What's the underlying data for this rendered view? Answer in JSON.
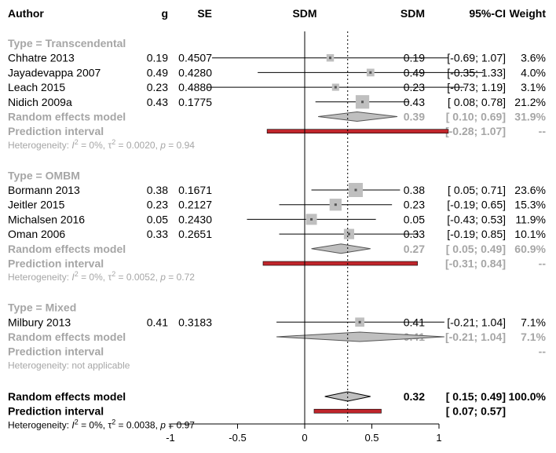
{
  "chart_data": {
    "type": "forest",
    "headers": {
      "author": "Author",
      "g": "g",
      "se": "SE",
      "sdm_plot": "SDM",
      "sdm": "SDM",
      "ci": "95%-CI",
      "weight": "Weight"
    },
    "xlim": [
      -1,
      1
    ],
    "ticks": [
      -1,
      -0.5,
      0,
      0.5,
      1
    ],
    "tick_labels": [
      "-1",
      "-0.5",
      "0",
      "0.5",
      "1"
    ],
    "reference_line": 0,
    "overall_line": 0.32,
    "groups": [
      {
        "title": "Type = Transcendental",
        "studies": [
          {
            "author": "Chhatre 2013",
            "g": "0.19",
            "se": "0.4507",
            "est": 0.19,
            "lo": -0.69,
            "hi": 1.07,
            "sdm": "0.19",
            "ci": "[-0.69; 1.07]",
            "weight": "3.6%",
            "w": 3.6
          },
          {
            "author": "Jayadevappa 2007",
            "g": "0.49",
            "se": "0.4280",
            "est": 0.49,
            "lo": -0.35,
            "hi": 1.33,
            "sdm": "0.49",
            "ci": "[-0.35; 1.33]",
            "weight": "4.0%",
            "w": 4.0
          },
          {
            "author": "Leach 2015",
            "g": "0.23",
            "se": "0.4880",
            "est": 0.23,
            "lo": -0.73,
            "hi": 1.19,
            "sdm": "0.23",
            "ci": "[-0.73; 1.19]",
            "weight": "3.1%",
            "w": 3.1
          },
          {
            "author": "Nidich 2009a",
            "g": "0.43",
            "se": "0.1775",
            "est": 0.43,
            "lo": 0.08,
            "hi": 0.78,
            "sdm": "0.43",
            "ci": "[ 0.08; 0.78]",
            "weight": "21.2%",
            "w": 21.2
          }
        ],
        "random": {
          "label": "Random effects model",
          "est": 0.39,
          "lo": 0.1,
          "hi": 0.69,
          "sdm": "0.39",
          "ci": "[ 0.10; 0.69]",
          "weight": "31.9%"
        },
        "prediction": {
          "label": "Prediction interval",
          "lo": -0.28,
          "hi": 1.07,
          "ci": "[-0.28; 1.07]",
          "weight": "--"
        },
        "heterogeneity": {
          "prefix": "Heterogeneity: ",
          "i2": "I",
          "i2_sup": "2",
          "i2_rest": " = 0%, ",
          "tau": "τ",
          "tau_sup": "2",
          "tau_rest": " = 0.0020, ",
          "p": "p",
          "p_rest": " = 0.94"
        }
      },
      {
        "title": "Type = OMBM",
        "studies": [
          {
            "author": "Bormann 2013",
            "g": "0.38",
            "se": "0.1671",
            "est": 0.38,
            "lo": 0.05,
            "hi": 0.71,
            "sdm": "0.38",
            "ci": "[ 0.05; 0.71]",
            "weight": "23.6%",
            "w": 23.6
          },
          {
            "author": "Jeitler 2015",
            "g": "0.23",
            "se": "0.2127",
            "est": 0.23,
            "lo": -0.19,
            "hi": 0.65,
            "sdm": "0.23",
            "ci": "[-0.19; 0.65]",
            "weight": "15.3%",
            "w": 15.3
          },
          {
            "author": "Michalsen 2016",
            "g": "0.05",
            "se": "0.2430",
            "est": 0.05,
            "lo": -0.43,
            "hi": 0.53,
            "sdm": "0.05",
            "ci": "[-0.43; 0.53]",
            "weight": "11.9%",
            "w": 11.9
          },
          {
            "author": "Oman 2006",
            "g": "0.33",
            "se": "0.2651",
            "est": 0.33,
            "lo": -0.19,
            "hi": 0.85,
            "sdm": "0.33",
            "ci": "[-0.19; 0.85]",
            "weight": "10.1%",
            "w": 10.1
          }
        ],
        "random": {
          "label": "Random effects model",
          "est": 0.27,
          "lo": 0.05,
          "hi": 0.49,
          "sdm": "0.27",
          "ci": "[ 0.05; 0.49]",
          "weight": "60.9%"
        },
        "prediction": {
          "label": "Prediction interval",
          "lo": -0.31,
          "hi": 0.84,
          "ci": "[-0.31; 0.84]",
          "weight": "--"
        },
        "heterogeneity": {
          "prefix": "Heterogeneity: ",
          "i2": "I",
          "i2_sup": "2",
          "i2_rest": " = 0%, ",
          "tau": "τ",
          "tau_sup": "2",
          "tau_rest": " = 0.0052, ",
          "p": "p",
          "p_rest": " = 0.72"
        }
      },
      {
        "title": "Type = Mixed",
        "studies": [
          {
            "author": "Milbury 2013",
            "g": "0.41",
            "se": "0.3183",
            "est": 0.41,
            "lo": -0.21,
            "hi": 1.04,
            "sdm": "0.41",
            "ci": "[-0.21; 1.04]",
            "weight": "7.1%",
            "w": 7.1
          }
        ],
        "random": {
          "label": "Random effects model",
          "est": 0.41,
          "lo": -0.21,
          "hi": 1.04,
          "sdm": "0.41",
          "ci": "[-0.21; 1.04]",
          "weight": "7.1%"
        },
        "prediction": {
          "label": "Prediction interval",
          "lo": null,
          "hi": null,
          "ci": "",
          "weight": "--"
        },
        "heterogeneity": {
          "text": "Heterogeneity: not applicable"
        }
      }
    ],
    "overall": {
      "random": {
        "label": "Random effects model",
        "est": 0.32,
        "lo": 0.15,
        "hi": 0.49,
        "sdm": "0.32",
        "ci": "[ 0.15; 0.49]",
        "weight": "100.0%"
      },
      "prediction": {
        "label": "Prediction interval",
        "lo": 0.07,
        "hi": 0.57,
        "ci": "[ 0.07; 0.57]"
      },
      "heterogeneity": {
        "prefix": "Heterogeneity: ",
        "i2": "I",
        "i2_sup": "2",
        "i2_rest": " = 0%, ",
        "tau": "τ",
        "tau_sup": "2",
        "tau_rest": " = 0.0038, ",
        "p": "p",
        "p_rest": " = 0.97"
      }
    },
    "colors": {
      "text": "#000000",
      "subgroup_text": "#a6a6a6",
      "square": "#bfbfbf",
      "diamond_fill": "#bfbfbf",
      "prediction_bar": "#c0262c",
      "line": "#000000"
    }
  }
}
